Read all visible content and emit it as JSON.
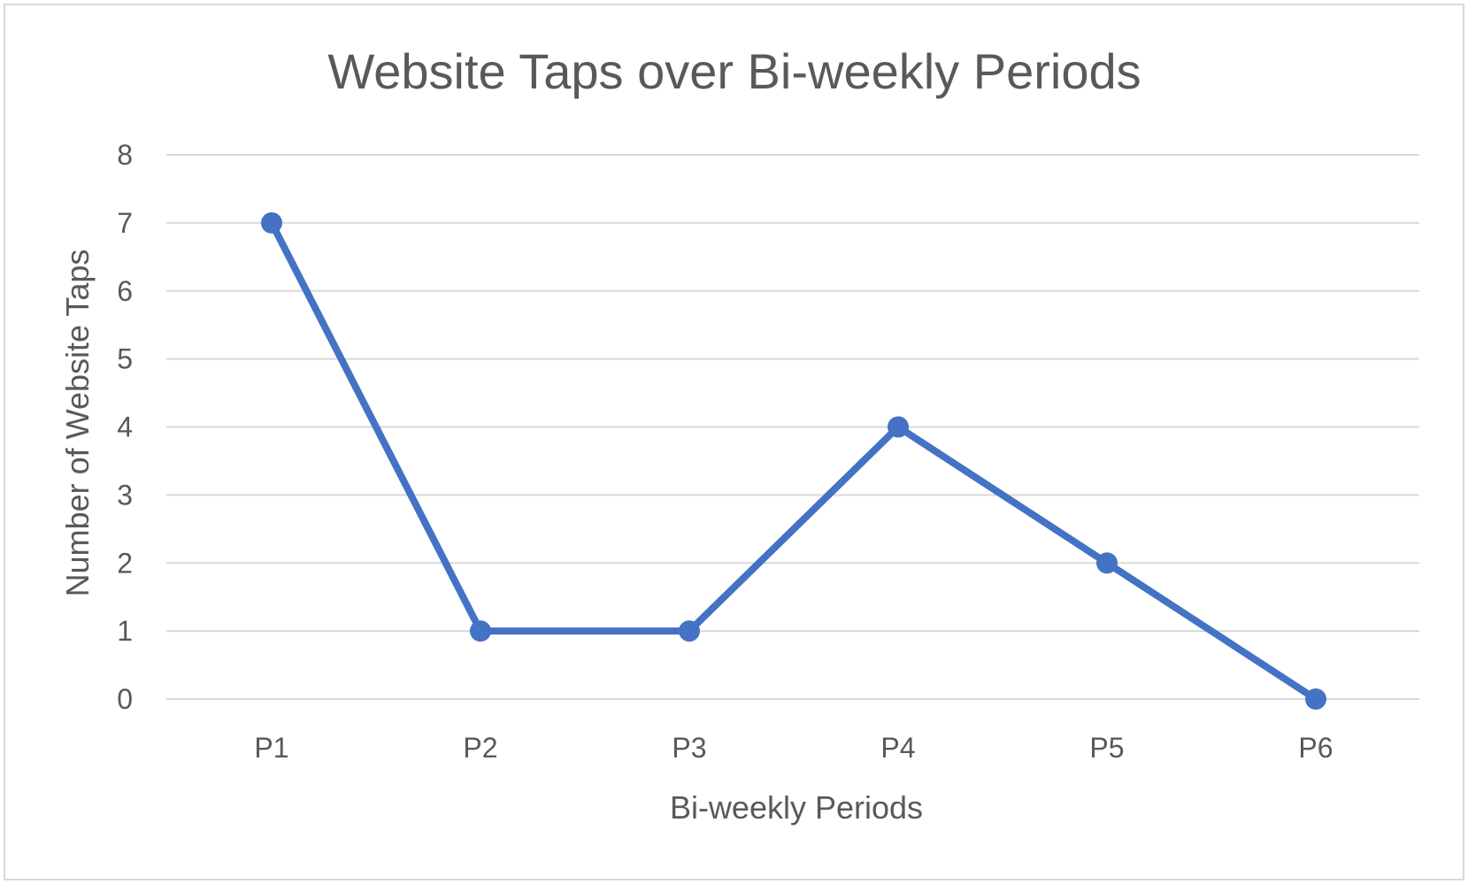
{
  "chart_data": {
    "type": "line",
    "title": "Website Taps over Bi-weekly Periods",
    "xlabel": "Bi-weekly Periods",
    "ylabel": "Number of Website Taps",
    "categories": [
      "P1",
      "P2",
      "P3",
      "P4",
      "P5",
      "P6"
    ],
    "series": [
      {
        "values": [
          7,
          1,
          1,
          4,
          2,
          0
        ]
      }
    ],
    "ylim": [
      0,
      8
    ],
    "yticks": [
      "0",
      "1",
      "2",
      "3",
      "4",
      "5",
      "6",
      "7",
      "8"
    ],
    "grid": true,
    "legend": "none",
    "colors": {
      "series": "#4472C4"
    }
  }
}
